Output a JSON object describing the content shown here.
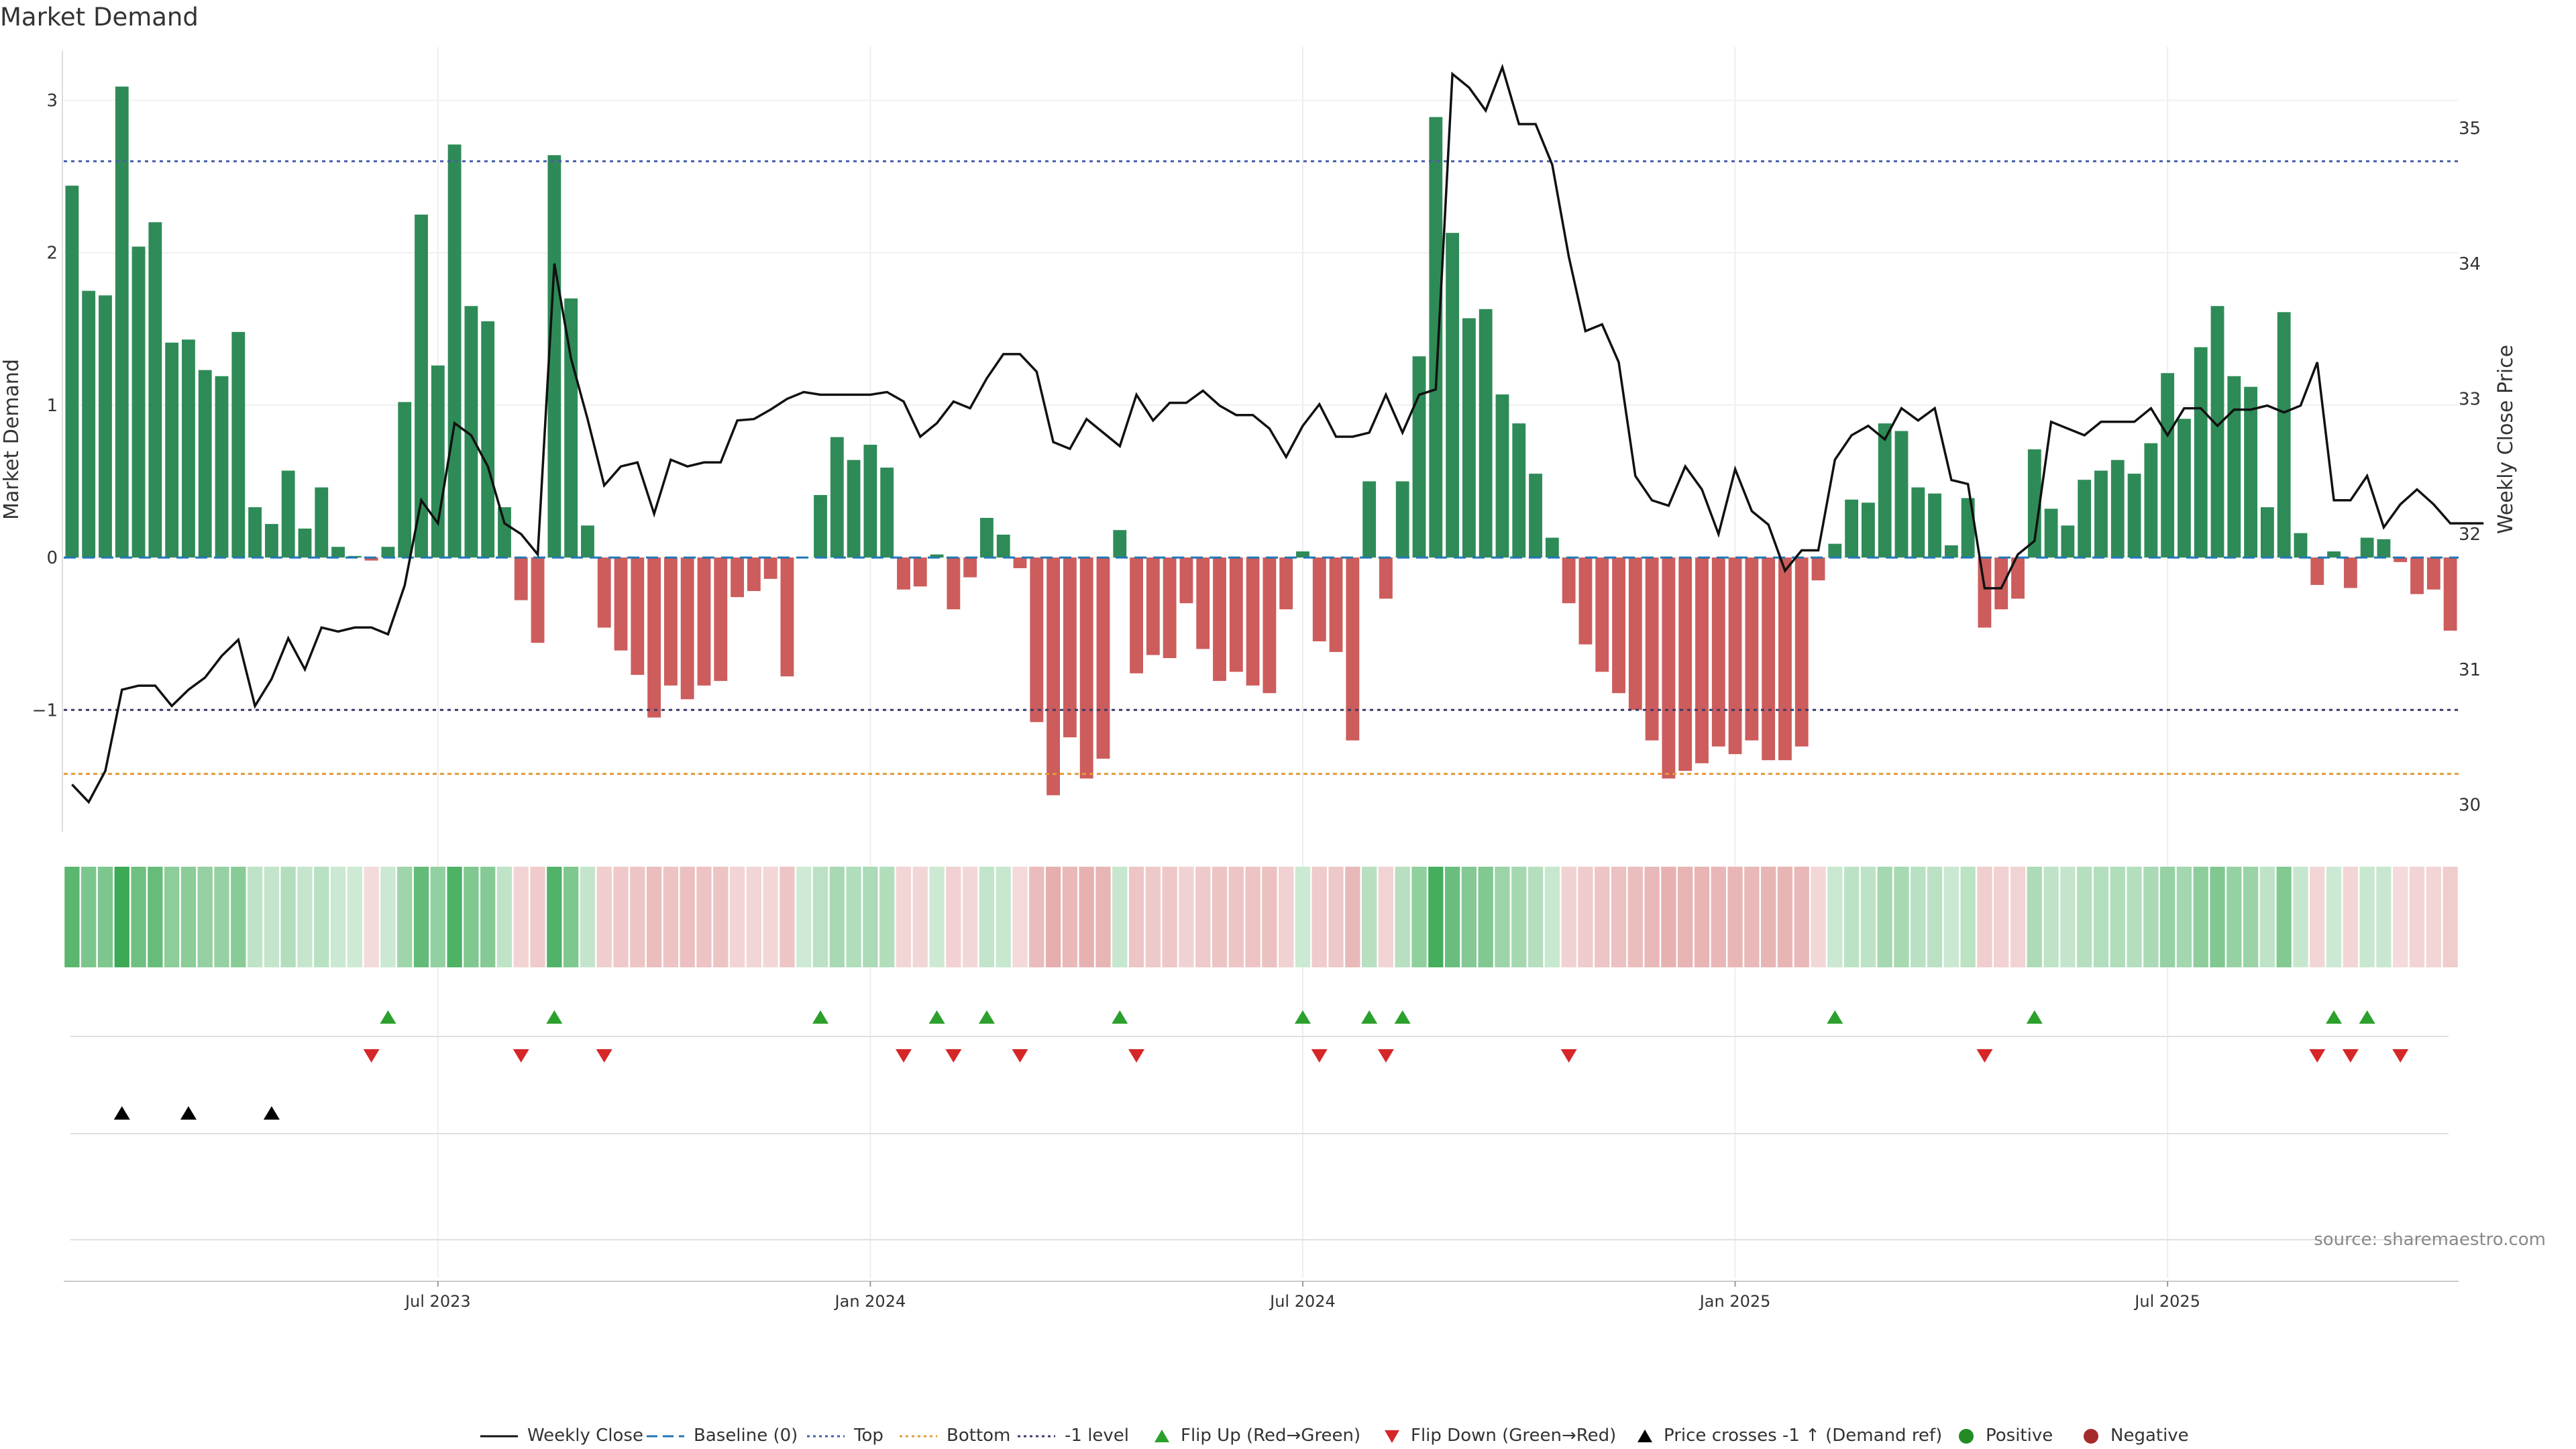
{
  "chart_data": {
    "type": "bar",
    "title": "Market Demand",
    "ylabel": "Market Demand",
    "y2label": "Weekly Close Price",
    "ylim": [
      -1.8,
      3.35
    ],
    "y2lim": [
      29.8,
      35.6
    ],
    "yticks": [
      "3",
      "2",
      "1",
      "0",
      "−1"
    ],
    "y2ticks": [
      "35",
      "34",
      "33",
      "32",
      "31",
      "30"
    ],
    "xtick_labels": [
      "Jul 2023",
      "Jan 2024",
      "Jul 2024",
      "Jan 2025",
      "Jul 2025"
    ],
    "reference_lines": [
      {
        "name": "Baseline (0)",
        "value": 0,
        "color": "#1f77b4"
      },
      {
        "name": "Top",
        "value": 2.6,
        "color": "#4a5ea8"
      },
      {
        "name": "Bottom",
        "value": -1.42,
        "color": "#e39a3a"
      },
      {
        "name": "-1 level",
        "value": -1.0,
        "color": "#3a3a6a"
      }
    ],
    "series": [
      {
        "name": "Market Demand",
        "type": "bar",
        "values": [
          2.44,
          1.75,
          1.72,
          3.09,
          2.04,
          2.2,
          1.41,
          1.43,
          1.23,
          1.19,
          1.48,
          0.33,
          0.22,
          0.57,
          0.19,
          0.46,
          0.07,
          0.01,
          -0.02,
          0.07,
          1.02,
          2.25,
          1.26,
          2.71,
          1.65,
          1.55,
          0.33,
          -0.28,
          -0.56,
          2.64,
          1.7,
          0.21,
          -0.46,
          -0.61,
          -0.77,
          -1.05,
          -0.84,
          -0.93,
          -0.84,
          -0.81,
          -0.26,
          -0.22,
          -0.14,
          -0.78,
          0,
          0.41,
          0.79,
          0.64,
          0.74,
          0.59,
          -0.21,
          -0.19,
          0.02,
          -0.34,
          -0.13,
          0.26,
          0.15,
          -0.07,
          -1.08,
          -1.56,
          -1.18,
          -1.45,
          -1.32,
          0.18,
          -0.76,
          -0.64,
          -0.66,
          -0.3,
          -0.6,
          -0.81,
          -0.75,
          -0.84,
          -0.89,
          -0.34,
          0.04,
          -0.55,
          -0.62,
          -1.2,
          0.5,
          -0.27,
          0.5,
          1.32,
          2.89,
          2.13,
          1.57,
          1.63,
          1.07,
          0.88,
          0.55,
          0.13,
          -0.3,
          -0.57,
          -0.75,
          -0.89,
          -1.0,
          -1.2,
          -1.45,
          -1.4,
          -1.35,
          -1.24,
          -1.29,
          -1.2,
          -1.33,
          -1.33,
          -1.24,
          -0.15,
          0.09,
          0.38,
          0.36,
          0.88,
          0.83,
          0.46,
          0.42,
          0.08,
          0.39,
          -0.46,
          -0.34,
          -0.27,
          0.71,
          0.32,
          0.21,
          0.51,
          0.57,
          0.64,
          0.55,
          0.75,
          1.21,
          0.91,
          1.38,
          1.65,
          1.19,
          1.12,
          0.33,
          1.61,
          0.16,
          -0.18,
          0.04,
          -0.2,
          0.13,
          0.12,
          -0.03,
          -0.24,
          -0.21,
          -0.48
        ]
      },
      {
        "name": "Weekly Close",
        "type": "line",
        "values": [
          30.15,
          30.02,
          30.25,
          30.85,
          30.88,
          30.88,
          30.73,
          30.85,
          30.94,
          31.1,
          31.22,
          30.73,
          30.93,
          31.23,
          31.0,
          31.31,
          31.28,
          31.31,
          31.31,
          31.26,
          31.62,
          32.25,
          32.08,
          32.82,
          32.73,
          32.5,
          32.08,
          32.0,
          31.85,
          34.0,
          33.3,
          32.85,
          32.36,
          32.5,
          32.53,
          32.15,
          32.55,
          32.5,
          32.53,
          32.53,
          32.84,
          32.85,
          32.92,
          33.0,
          33.05,
          33.03,
          33.03,
          33.03,
          33.03,
          33.05,
          32.98,
          32.72,
          32.82,
          32.98,
          32.93,
          33.15,
          33.33,
          33.33,
          33.2,
          32.68,
          32.63,
          32.85,
          32.75,
          32.65,
          33.03,
          32.84,
          32.97,
          32.97,
          33.06,
          32.95,
          32.88,
          32.88,
          32.78,
          32.57,
          32.8,
          32.96,
          32.72,
          32.72,
          32.75,
          33.03,
          32.75,
          33.03,
          33.07,
          35.4,
          35.3,
          35.13,
          35.45,
          35.03,
          35.03,
          34.73,
          34.05,
          33.5,
          33.55,
          33.27,
          32.43,
          32.25,
          32.21,
          32.5,
          32.33,
          32.0,
          32.48,
          32.17,
          32.07,
          31.73,
          31.88,
          31.88,
          32.55,
          32.73,
          32.8,
          32.7,
          32.93,
          32.84,
          32.93,
          32.4,
          32.37,
          31.6,
          31.6,
          31.85,
          31.95,
          32.83,
          32.78,
          32.73,
          32.83,
          32.83,
          32.83,
          32.93,
          32.73,
          32.93,
          32.93,
          32.8,
          32.92,
          32.92,
          32.95,
          32.9,
          32.95,
          33.27,
          32.25,
          32.25,
          32.43,
          32.05,
          32.22,
          32.33,
          32.22,
          32.08,
          32.08,
          32.08
        ]
      }
    ],
    "flip_up_indices": [
      19,
      29,
      45,
      52,
      55,
      63,
      74,
      78,
      80,
      106,
      118,
      136,
      138
    ],
    "flip_down_indices": [
      18,
      27,
      32,
      50,
      53,
      57,
      64,
      75,
      79,
      90,
      115,
      135,
      137,
      140
    ],
    "price_cross_indices": [
      3,
      7,
      12
    ],
    "legend": {
      "position": "bottom",
      "entries": [
        "Weekly Close",
        "Baseline (0)",
        "Top",
        "Bottom",
        "-1 level",
        "Flip Up (Red→Green)",
        "Flip Down (Green→Red)",
        "Price crosses -1 ↑ (Demand ref)",
        "Positive",
        "Negative"
      ]
    },
    "source": "source: sharemaestro.com"
  }
}
